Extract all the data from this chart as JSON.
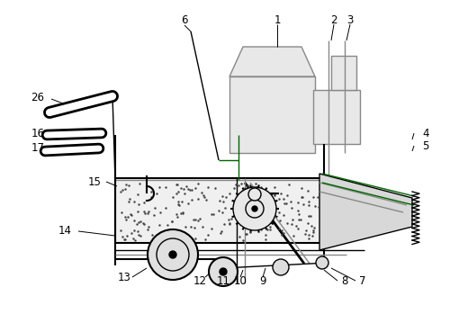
{
  "bg_color": "#ffffff",
  "line_color": "#000000",
  "gray_color": "#888888",
  "light_gray": "#aaaaaa",
  "green_color": "#006600",
  "figure_size": [
    5.0,
    3.59
  ],
  "dpi": 100
}
